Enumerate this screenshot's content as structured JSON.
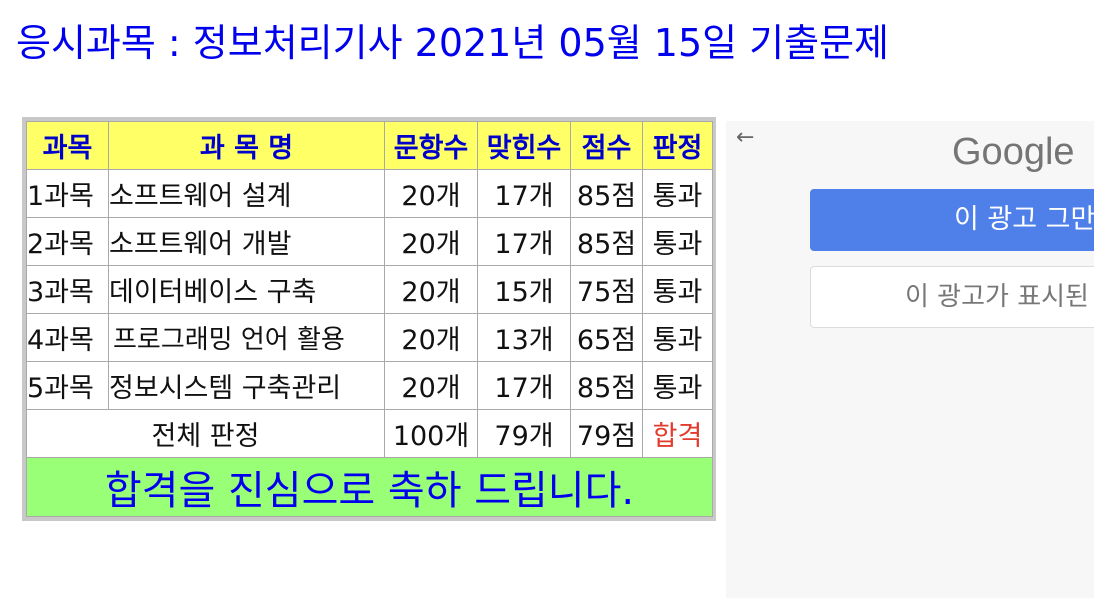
{
  "page_title": "응시과목 : 정보처리기사 2021년 05월 15일 기출문제",
  "table": {
    "headers": [
      "과목",
      "과 목 명",
      "문항수",
      "맞힌수",
      "점수",
      "판정"
    ],
    "rows": [
      {
        "no": "1과목",
        "name": "소프트웨어 설계",
        "questions": "20개",
        "correct": "17개",
        "score": "85점",
        "verdict": "통과"
      },
      {
        "no": "2과목",
        "name": "소프트웨어 개발",
        "questions": "20개",
        "correct": "17개",
        "score": "85점",
        "verdict": "통과"
      },
      {
        "no": "3과목",
        "name": "데이터베이스 구축",
        "questions": "20개",
        "correct": "15개",
        "score": "75점",
        "verdict": "통과"
      },
      {
        "no": "4과목",
        "name": "프로그래밍 언어 활용",
        "questions": "20개",
        "correct": "13개",
        "score": "65점",
        "verdict": "통과"
      },
      {
        "no": "5과목",
        "name": "정보시스템 구축관리",
        "questions": "20개",
        "correct": "17개",
        "score": "85점",
        "verdict": "통과"
      }
    ],
    "total": {
      "label": "전체 판정",
      "questions": "100개",
      "correct": "79개",
      "score": "79점",
      "verdict": "합격"
    },
    "congrats": "합격을 진심으로 축하 드립니다."
  },
  "ad": {
    "back_icon": "←",
    "logo": "Google",
    "stop_button": "이 광고 그만",
    "why_button": "이 광고가 표시된"
  },
  "colors": {
    "title": "#0000ee",
    "header_bg": "#ffff66",
    "header_text": "#0000cc",
    "pass_verdict": "#e23b2e",
    "congrats_bg": "#99ff77",
    "ad_primary": "#4f7fe8"
  }
}
